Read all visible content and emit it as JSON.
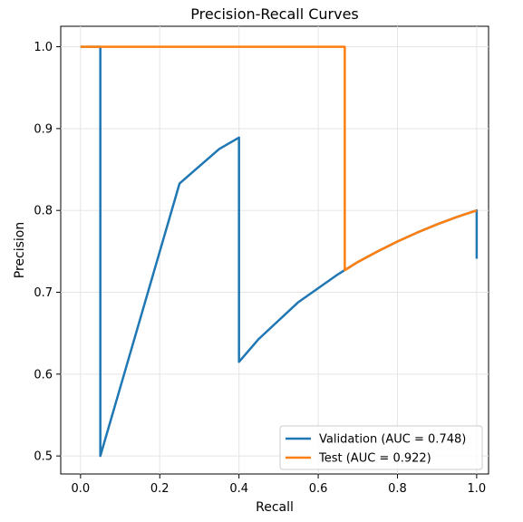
{
  "chart_data": {
    "type": "line",
    "title": "Precision-Recall Curves",
    "xlabel": "Recall",
    "ylabel": "Precision",
    "xlim": [
      -0.05,
      1.03
    ],
    "ylim": [
      0.478,
      1.025
    ],
    "xticks": [
      0.0,
      0.2,
      0.4,
      0.6,
      0.8,
      1.0
    ],
    "xtick_labels": [
      "0.0",
      "0.2",
      "0.4",
      "0.6",
      "0.8",
      "1.0"
    ],
    "yticks": [
      0.5,
      0.6,
      0.7,
      0.8,
      0.9,
      1.0
    ],
    "ytick_labels": [
      "0.5",
      "0.6",
      "0.7",
      "0.8",
      "0.9",
      "1.0"
    ],
    "grid": true,
    "legend_position": "lower-right",
    "series": [
      {
        "name": "Validation (AUC = 0.748)",
        "color": "#1f77b4",
        "x": [
          0.0,
          0.05,
          0.05,
          0.05,
          0.25,
          0.35,
          0.4,
          0.4,
          0.45,
          0.55,
          0.65,
          0.7,
          0.75,
          0.8,
          0.85,
          0.9,
          0.95,
          1.0,
          1.0
        ],
        "y": [
          1.0,
          1.0,
          1.0,
          0.5,
          0.833,
          0.875,
          0.889,
          0.615,
          0.643,
          0.688,
          0.722,
          0.737,
          0.75,
          0.762,
          0.773,
          0.783,
          0.792,
          0.8,
          0.741
        ]
      },
      {
        "name": "Test (AUC = 0.922)",
        "color": "#ff7f0e",
        "x": [
          0.0,
          0.667,
          0.667,
          0.7,
          0.75,
          0.8,
          0.85,
          0.9,
          0.95,
          1.0
        ],
        "y": [
          1.0,
          1.0,
          0.727,
          0.737,
          0.75,
          0.762,
          0.773,
          0.783,
          0.792,
          0.8
        ]
      }
    ]
  }
}
